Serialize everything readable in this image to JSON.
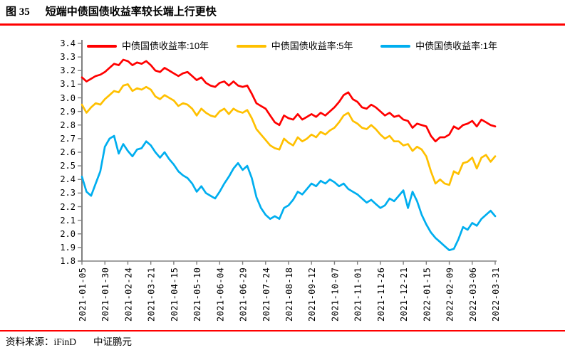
{
  "title": {
    "figure_label": "图 35",
    "text": "短端中债国债收益率较长端上行更快"
  },
  "footer": {
    "source_label": "资料来源：iFinD",
    "brand": "中证鹏元"
  },
  "colors": {
    "series_10y": "#FF0000",
    "series_5y": "#FFC000",
    "series_1y": "#00AEEF",
    "title_rule": "#FF0000",
    "footer_rule": "#FF0000",
    "axis": "#808080",
    "text": "#000000",
    "background": "#FFFFFF"
  },
  "chart_data": {
    "type": "line",
    "title": "短端中债国债收益率较长端上行更快",
    "xlabel": "",
    "ylabel": "",
    "ylim": [
      1.8,
      3.4
    ],
    "y_tick_step": 0.1,
    "y_tick_labels": [
      "3.4",
      "3.3",
      "3.2",
      "3.1",
      "3.0",
      "2.9",
      "2.8",
      "2.7",
      "2.6",
      "2.5",
      "2.4",
      "2.3",
      "2.2",
      "2.1",
      "2.0",
      "1.9",
      "1.8"
    ],
    "x_tick_labels": [
      "2021-01-05",
      "2021-01-30",
      "2021-02-24",
      "2021-03-21",
      "2021-04-15",
      "2021-05-10",
      "2021-06-04",
      "2021-06-29",
      "2021-07-24",
      "2021-08-18",
      "2021-09-12",
      "2021-10-07",
      "2021-11-01",
      "2021-11-26",
      "2021-12-21",
      "2022-01-15",
      "2022-02-09",
      "2022-03-06",
      "2022-03-31"
    ],
    "x_tick_interval_days": 25,
    "legend_position": "top",
    "grid": false,
    "x_days": [
      0,
      5,
      10,
      15,
      20,
      25,
      30,
      35,
      40,
      45,
      50,
      55,
      60,
      65,
      70,
      75,
      80,
      85,
      90,
      95,
      100,
      105,
      110,
      115,
      120,
      125,
      130,
      135,
      140,
      145,
      150,
      155,
      160,
      165,
      170,
      175,
      180,
      185,
      190,
      195,
      200,
      205,
      210,
      215,
      220,
      225,
      230,
      235,
      240,
      245,
      250,
      255,
      260,
      265,
      270,
      275,
      280,
      285,
      290,
      295,
      300,
      305,
      310,
      315,
      320,
      325,
      330,
      335,
      340,
      345,
      350,
      355,
      360,
      365,
      370,
      375,
      380,
      385,
      390,
      395,
      400,
      405,
      410,
      415,
      420,
      425,
      430,
      435,
      440,
      445,
      450
    ],
    "series": [
      {
        "name": "中债国债收益率:10年",
        "color": "#FF0000",
        "values": [
          3.15,
          3.12,
          3.14,
          3.16,
          3.17,
          3.19,
          3.22,
          3.25,
          3.24,
          3.28,
          3.27,
          3.24,
          3.26,
          3.25,
          3.27,
          3.24,
          3.2,
          3.19,
          3.22,
          3.2,
          3.18,
          3.16,
          3.18,
          3.19,
          3.16,
          3.13,
          3.15,
          3.11,
          3.09,
          3.08,
          3.11,
          3.12,
          3.09,
          3.12,
          3.09,
          3.08,
          3.09,
          3.03,
          2.96,
          2.94,
          2.92,
          2.87,
          2.82,
          2.8,
          2.87,
          2.85,
          2.84,
          2.88,
          2.84,
          2.86,
          2.88,
          2.86,
          2.89,
          2.87,
          2.9,
          2.93,
          2.97,
          3.02,
          3.04,
          2.99,
          2.97,
          2.93,
          2.92,
          2.95,
          2.93,
          2.9,
          2.87,
          2.89,
          2.86,
          2.87,
          2.84,
          2.83,
          2.78,
          2.81,
          2.8,
          2.79,
          2.72,
          2.68,
          2.71,
          2.71,
          2.73,
          2.79,
          2.77,
          2.8,
          2.81,
          2.83,
          2.79,
          2.84,
          2.82,
          2.8,
          2.79
        ]
      },
      {
        "name": "中债国债收益率:5年",
        "color": "#FFC000",
        "values": [
          2.95,
          2.89,
          2.93,
          2.96,
          2.95,
          2.99,
          3.02,
          3.05,
          3.04,
          3.09,
          3.1,
          3.05,
          3.07,
          3.06,
          3.08,
          3.06,
          3.01,
          2.99,
          3.02,
          3.0,
          2.98,
          2.94,
          2.96,
          2.95,
          2.92,
          2.87,
          2.92,
          2.89,
          2.87,
          2.86,
          2.9,
          2.92,
          2.88,
          2.92,
          2.9,
          2.89,
          2.91,
          2.85,
          2.77,
          2.73,
          2.69,
          2.65,
          2.63,
          2.62,
          2.7,
          2.67,
          2.65,
          2.71,
          2.68,
          2.7,
          2.73,
          2.71,
          2.75,
          2.73,
          2.76,
          2.78,
          2.82,
          2.87,
          2.89,
          2.83,
          2.81,
          2.78,
          2.77,
          2.8,
          2.77,
          2.73,
          2.7,
          2.72,
          2.68,
          2.68,
          2.65,
          2.66,
          2.61,
          2.64,
          2.62,
          2.57,
          2.46,
          2.37,
          2.4,
          2.37,
          2.36,
          2.46,
          2.44,
          2.52,
          2.53,
          2.56,
          2.48,
          2.56,
          2.58,
          2.53,
          2.57
        ]
      },
      {
        "name": "中债国债收益率:1年",
        "color": "#00AEEF",
        "values": [
          2.42,
          2.31,
          2.28,
          2.37,
          2.46,
          2.64,
          2.7,
          2.72,
          2.59,
          2.66,
          2.61,
          2.57,
          2.62,
          2.63,
          2.68,
          2.65,
          2.6,
          2.56,
          2.6,
          2.55,
          2.51,
          2.46,
          2.43,
          2.41,
          2.37,
          2.31,
          2.35,
          2.3,
          2.28,
          2.26,
          2.31,
          2.37,
          2.42,
          2.48,
          2.52,
          2.47,
          2.5,
          2.41,
          2.27,
          2.19,
          2.14,
          2.11,
          2.13,
          2.11,
          2.19,
          2.21,
          2.25,
          2.31,
          2.29,
          2.33,
          2.37,
          2.35,
          2.39,
          2.37,
          2.4,
          2.38,
          2.35,
          2.37,
          2.33,
          2.31,
          2.29,
          2.26,
          2.23,
          2.25,
          2.22,
          2.19,
          2.21,
          2.26,
          2.24,
          2.28,
          2.32,
          2.19,
          2.31,
          2.24,
          2.14,
          2.07,
          2.01,
          1.97,
          1.94,
          1.91,
          1.88,
          1.89,
          1.96,
          2.05,
          2.03,
          2.08,
          2.06,
          2.11,
          2.14,
          2.17,
          2.13
        ]
      }
    ]
  }
}
